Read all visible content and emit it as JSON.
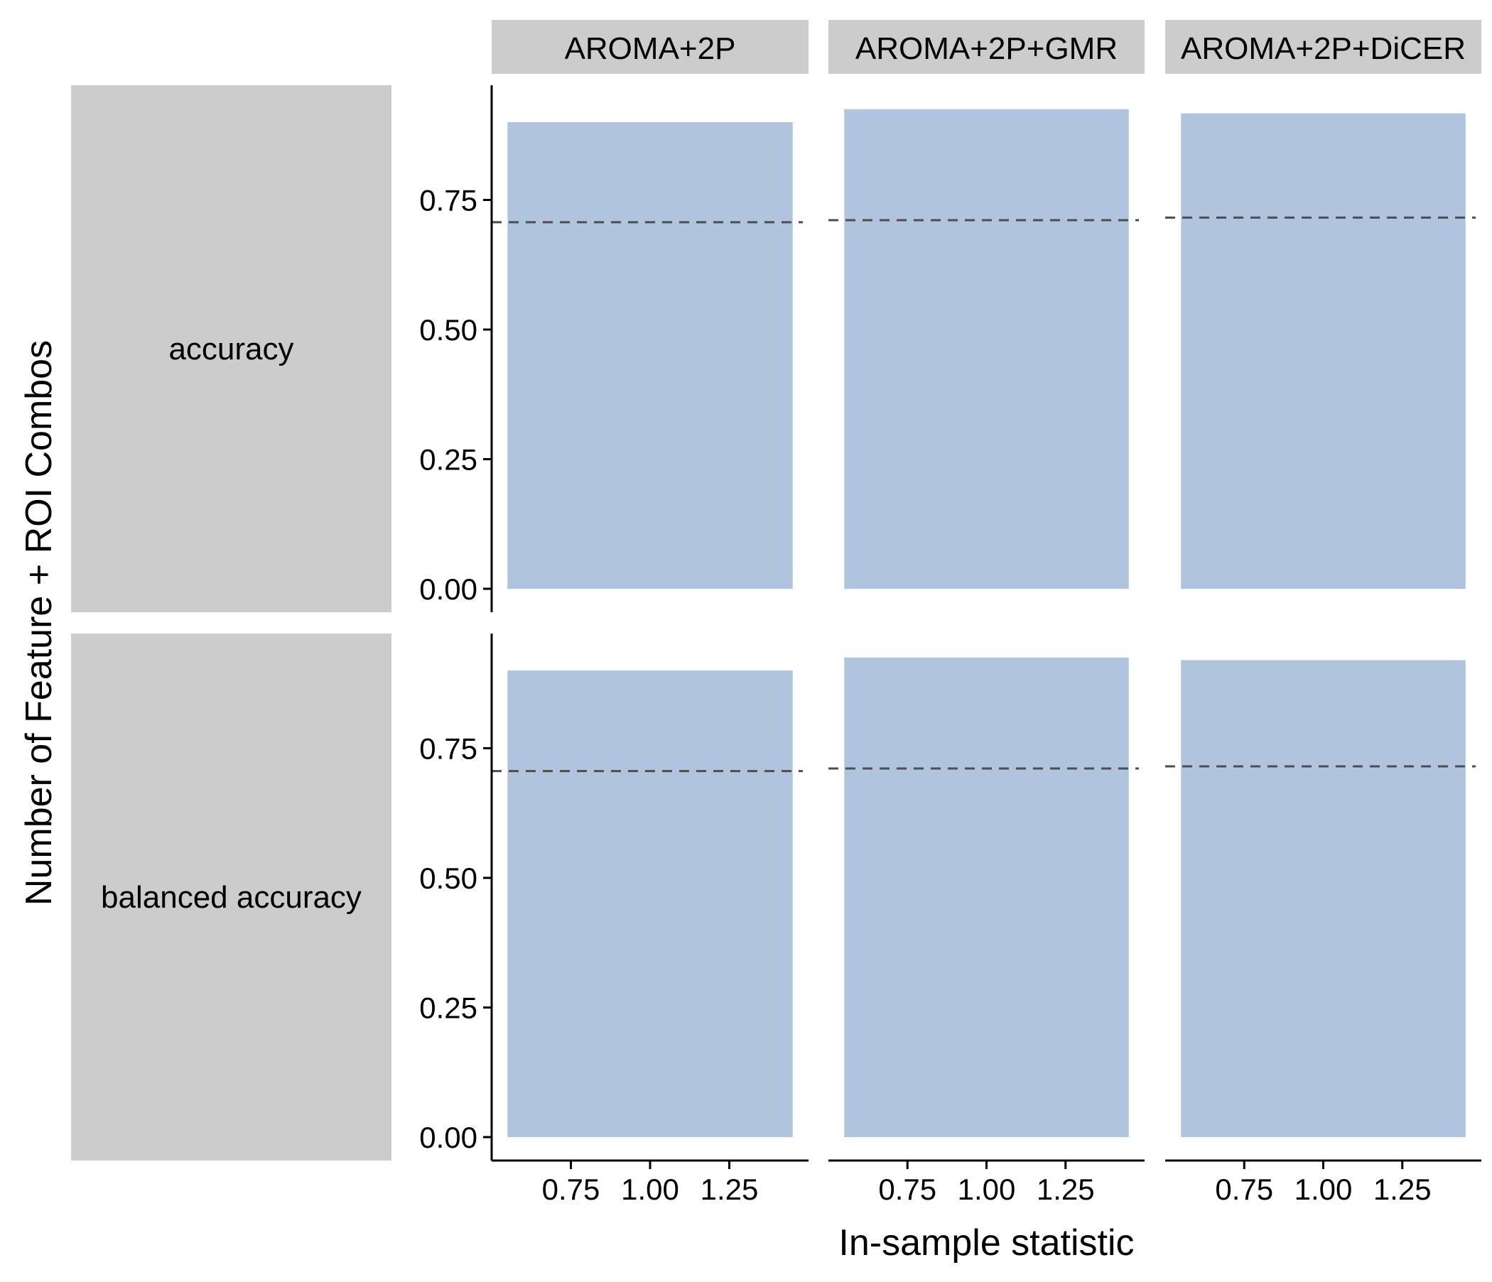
{
  "chart_data": {
    "type": "bar",
    "layout": "facet_grid",
    "xlabel": "In-sample statistic",
    "ylabel": "Number of Feature + ROI Combos",
    "column_facets": [
      "AROMA+2P",
      "AROMA+2P+GMR",
      "AROMA+2P+DiCER"
    ],
    "row_facets": [
      "accuracy",
      "balanced accuracy"
    ],
    "x": {
      "range": [
        0.5,
        1.5
      ],
      "ticks": [
        0.75,
        1.0,
        1.25
      ],
      "tick_labels": [
        "0.75",
        "1.00",
        "1.25"
      ]
    },
    "y": {
      "range": [
        0,
        0.92
      ],
      "ticks": [
        0,
        0.25,
        0.5,
        0.75
      ],
      "tick_labels": [
        "0.00",
        "0.25",
        "0.50",
        "0.75"
      ]
    },
    "bar": {
      "x_center": 1.0,
      "width": 0.9,
      "color": "#b0c4de"
    },
    "reference_line": {
      "style": "dashed",
      "color": "#4d4d4d"
    },
    "panels": [
      {
        "row": "accuracy",
        "column": "AROMA+2P",
        "value": 0.9,
        "reference": 0.707
      },
      {
        "row": "accuracy",
        "column": "AROMA+2P+GMR",
        "value": 0.925,
        "reference": 0.711
      },
      {
        "row": "accuracy",
        "column": "AROMA+2P+DiCER",
        "value": 0.917,
        "reference": 0.716
      },
      {
        "row": "balanced accuracy",
        "column": "AROMA+2P",
        "value": 0.9,
        "reference": 0.706
      },
      {
        "row": "balanced accuracy",
        "column": "AROMA+2P+GMR",
        "value": 0.925,
        "reference": 0.711
      },
      {
        "row": "balanced accuracy",
        "column": "AROMA+2P+DiCER",
        "value": 0.92,
        "reference": 0.715
      }
    ],
    "legend": "none",
    "grid": false
  }
}
